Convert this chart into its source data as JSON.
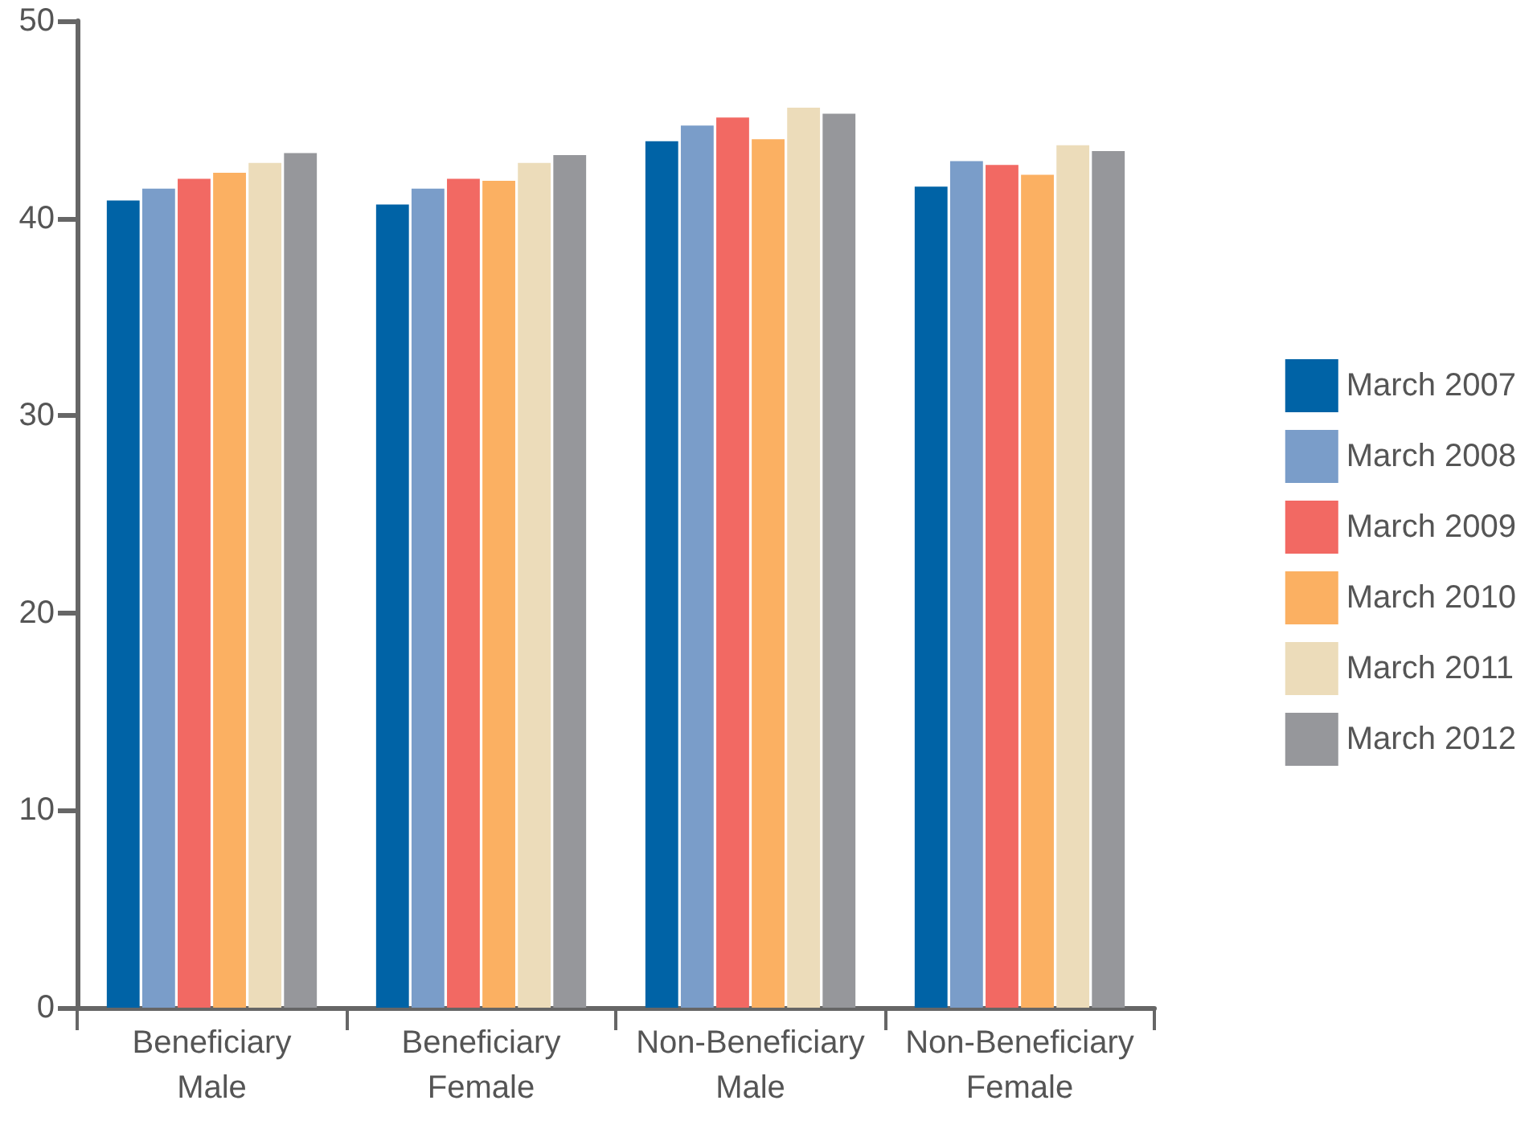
{
  "chart_data": {
    "type": "bar",
    "categories": [
      "Beneficiary\nMale",
      "Beneficiary\nFemale",
      "Non-Beneficiary\nMale",
      "Non-Beneficiary\nFemale"
    ],
    "series": [
      {
        "name": "March 2007",
        "color": "#0063a6",
        "values": [
          40.9,
          40.7,
          43.9,
          41.6
        ]
      },
      {
        "name": "March 2008",
        "color": "#7a9dc9",
        "values": [
          41.5,
          41.5,
          44.7,
          42.9
        ]
      },
      {
        "name": "March 2009",
        "color": "#f26963",
        "values": [
          42.0,
          42.0,
          45.1,
          42.7
        ]
      },
      {
        "name": "March 2010",
        "color": "#fbb062",
        "values": [
          42.3,
          41.9,
          44.0,
          42.2
        ]
      },
      {
        "name": "March 2011",
        "color": "#ecdcba",
        "values": [
          42.8,
          42.8,
          45.6,
          43.7
        ]
      },
      {
        "name": "March 2012",
        "color": "#96979b",
        "values": [
          43.3,
          43.2,
          45.3,
          43.4
        ]
      }
    ],
    "ylim": [
      0,
      50
    ],
    "yticks": [
      0,
      10,
      20,
      30,
      40,
      50
    ],
    "grid": false,
    "legend": "right"
  }
}
